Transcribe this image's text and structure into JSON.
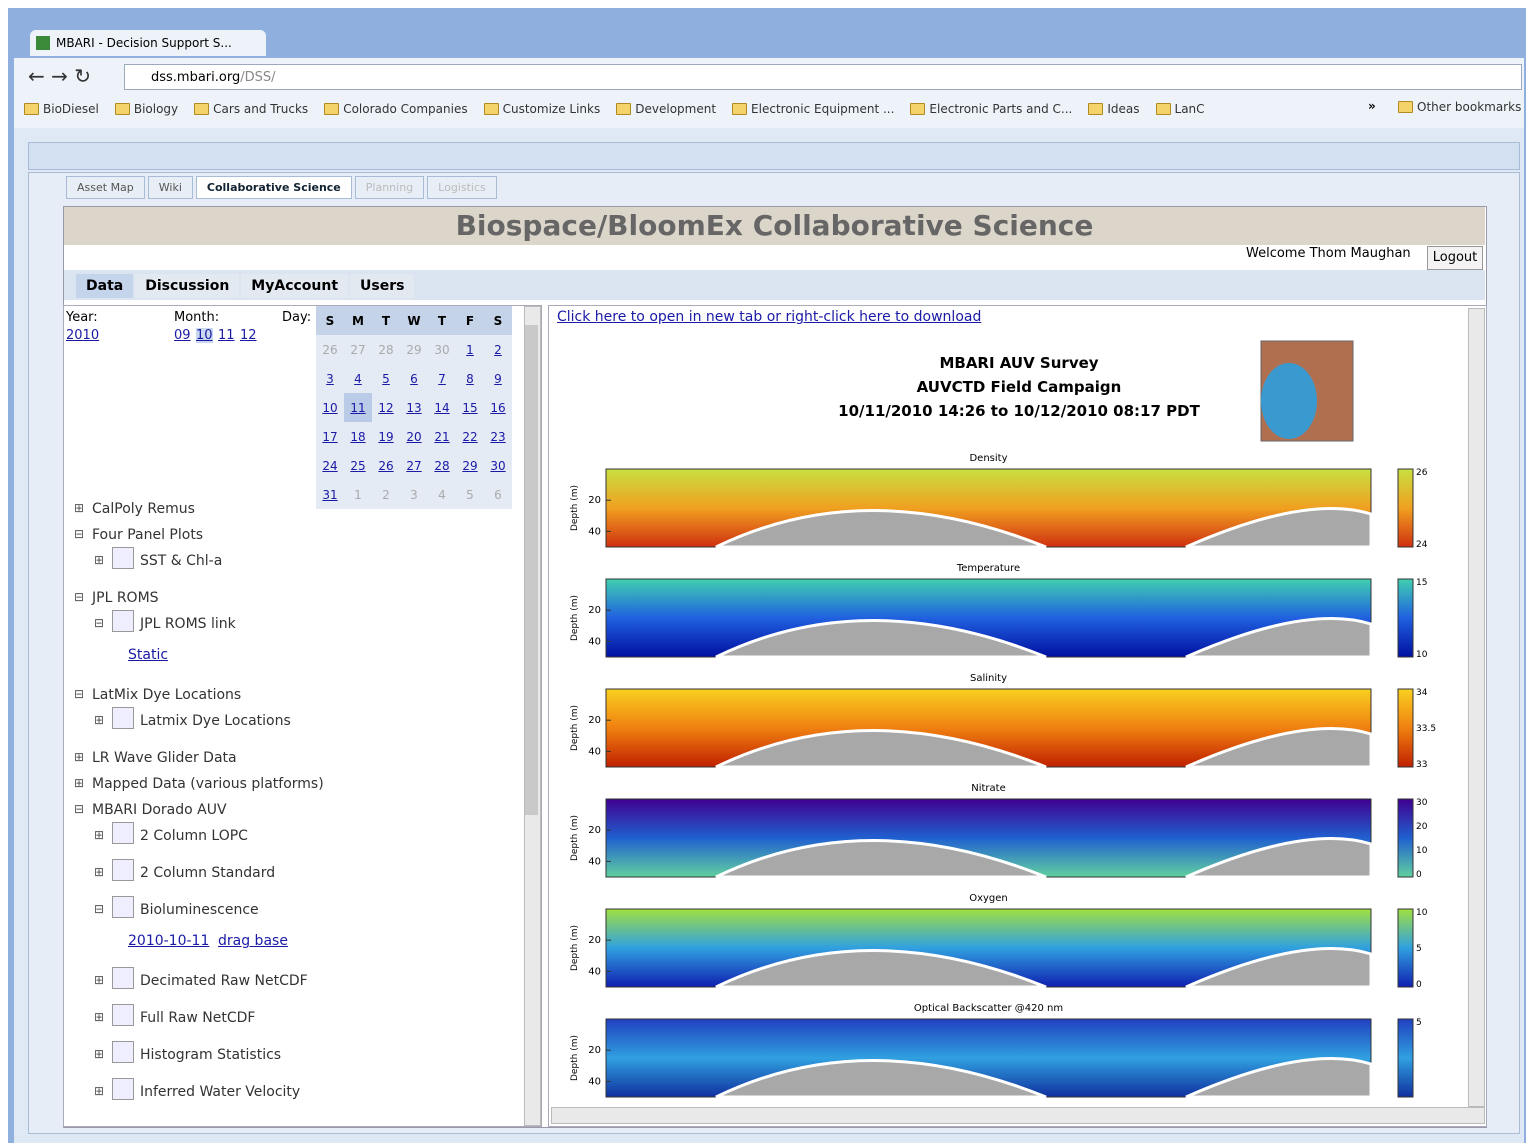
{
  "browser": {
    "tab_title": "MBARI - Decision Support S...",
    "url_host": "dss.mbari.org",
    "url_path": "/DSS/",
    "bookmarks": [
      "BioDiesel",
      "Biology",
      "Cars and Trucks",
      "Colorado Companies",
      "Customize Links",
      "Development",
      "Electronic Equipment ...",
      "Electronic Parts and C...",
      "Ideas",
      "LanC"
    ],
    "bookmarks_more": "»",
    "other_bookmarks": "Other bookmarks"
  },
  "app": {
    "tabs": [
      "Asset Map",
      "Wiki",
      "Collaborative Science",
      "Planning",
      "Logistics"
    ],
    "title": "Biospace/BloomEx Collaborative Science",
    "welcome": "Welcome Thom Maughan",
    "logout": "Logout",
    "subtabs": [
      "Data",
      "Discussion",
      "MyAccount",
      "Users"
    ]
  },
  "date_picker": {
    "year_label": "Year:",
    "years": [
      "2010"
    ],
    "month_label": "Month:",
    "months": [
      "09",
      "10",
      "11",
      "12"
    ],
    "day_label": "Day:",
    "weekdays": [
      "S",
      "M",
      "T",
      "W",
      "T",
      "F",
      "S"
    ],
    "weeks": [
      [
        "26",
        "27",
        "28",
        "29",
        "30",
        "1",
        "2"
      ],
      [
        "3",
        "4",
        "5",
        "6",
        "7",
        "8",
        "9"
      ],
      [
        "10",
        "11",
        "12",
        "13",
        "14",
        "15",
        "16"
      ],
      [
        "17",
        "18",
        "19",
        "20",
        "21",
        "22",
        "23"
      ],
      [
        "24",
        "25",
        "26",
        "27",
        "28",
        "29",
        "30"
      ],
      [
        "31",
        "1",
        "2",
        "3",
        "4",
        "5",
        "6"
      ]
    ]
  },
  "tree": [
    {
      "label": "CalPoly Remus"
    },
    {
      "label": "Four Panel Plots",
      "children": [
        {
          "label": "SST & Chl-a"
        }
      ]
    },
    {
      "label": "JPL ROMS",
      "children": [
        {
          "label": "JPL ROMS link",
          "links": [
            "Static"
          ]
        }
      ]
    },
    {
      "label": "LatMix Dye Locations",
      "children": [
        {
          "label": "Latmix Dye Locations"
        }
      ]
    },
    {
      "label": "LR Wave Glider Data"
    },
    {
      "label": "Mapped Data (various platforms)"
    },
    {
      "label": "MBARI Dorado AUV",
      "children": [
        {
          "label": "2 Column LOPC"
        },
        {
          "label": "2 Column Standard"
        },
        {
          "label": "Bioluminescence",
          "links": [
            "2010-10-11",
            "drag base"
          ]
        },
        {
          "label": "Decimated Raw NetCDF"
        },
        {
          "label": "Full Raw NetCDF"
        },
        {
          "label": "Histogram Statistics"
        },
        {
          "label": "Inferred Water Velocity"
        }
      ]
    }
  ],
  "plot": {
    "link": "Click here to open in new tab or right-click here to download",
    "title_lines": [
      "MBARI AUV Survey",
      "AUVCTD Field Campaign",
      "10/11/2010 14:26  to 10/12/2010 08:17 PDT"
    ],
    "ylabel": "Depth (m)",
    "panels": [
      {
        "title": "Density",
        "yticks": [
          20,
          40
        ],
        "cbar": [
          "26",
          "24"
        ]
      },
      {
        "title": "Temperature",
        "yticks": [
          20,
          40
        ],
        "cbar": [
          "15",
          "10"
        ]
      },
      {
        "title": "Salinity",
        "yticks": [
          20,
          40
        ],
        "cbar": [
          "34",
          "33.5",
          "33"
        ]
      },
      {
        "title": "Nitrate",
        "yticks": [
          20,
          40
        ],
        "cbar": [
          "30",
          "20",
          "10",
          "0"
        ]
      },
      {
        "title": "Oxygen",
        "yticks": [
          20,
          40
        ],
        "cbar": [
          "10",
          "5",
          "0"
        ]
      },
      {
        "title": "Optical Backscatter @420 nm",
        "yticks": [
          20,
          40
        ],
        "cbar": [
          "5"
        ]
      }
    ]
  }
}
